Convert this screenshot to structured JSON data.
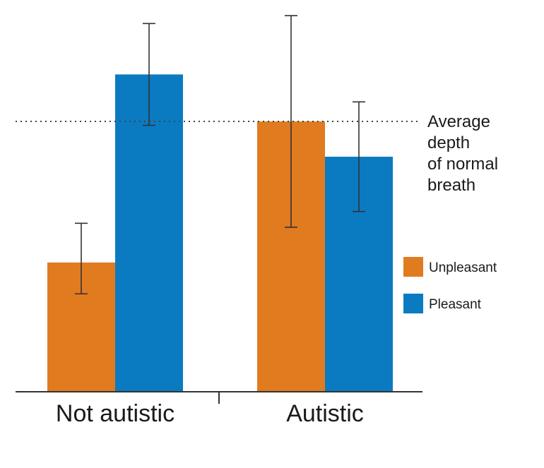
{
  "chart_data": {
    "type": "bar",
    "title": "",
    "xlabel": "",
    "ylabel": "",
    "categories": [
      "Not autistic",
      "Autistic"
    ],
    "ylim": [
      0,
      100
    ],
    "grid": false,
    "series": [
      {
        "name": "Unpleasant",
        "color": "#e07b20",
        "values": [
          33,
          69
        ],
        "error_low": [
          25,
          42
        ],
        "error_high": [
          43,
          96
        ]
      },
      {
        "name": "Pleasant",
        "color": "#0b7bc1",
        "values": [
          81,
          60
        ],
        "error_low": [
          68,
          46
        ],
        "error_high": [
          94,
          74
        ]
      }
    ],
    "reference_line": {
      "value": 69,
      "style": "dotted",
      "label_lines": [
        "Average",
        "depth",
        "of normal",
        "breath"
      ]
    },
    "legend": {
      "position": "right",
      "entries": [
        "Unpleasant",
        "Pleasant"
      ]
    }
  }
}
